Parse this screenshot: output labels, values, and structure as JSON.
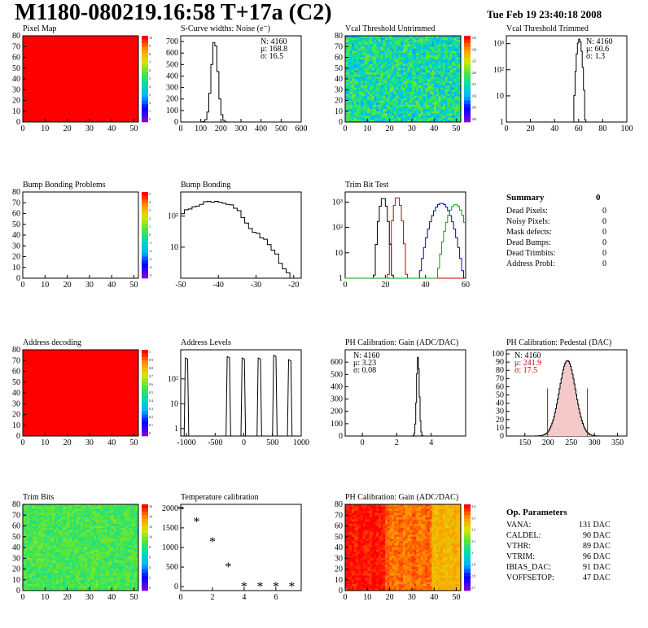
{
  "header": {
    "title": "M1180-080219.16:58 T+17a (C2)",
    "date": "Tue Feb 19 23:40:18 2008"
  },
  "chart_data": [
    {
      "id": "pixel-map",
      "type": "heatmap",
      "title": "Pixel Map",
      "xlim": [
        0,
        52
      ],
      "ylim": [
        0,
        80
      ],
      "xticks": [
        0,
        10,
        20,
        30,
        40,
        50
      ],
      "yticks": [
        0,
        10,
        20,
        30,
        40,
        50,
        60,
        70,
        80
      ],
      "fill": "#ff0000",
      "palette_ticks": [
        "10",
        "9",
        "8",
        "7",
        "6",
        "5",
        "4",
        "3",
        "2",
        "1",
        "0"
      ]
    },
    {
      "id": "noise",
      "type": "bar",
      "title": "S-Curve widths: Noise (e⁻)",
      "xlim": [
        0,
        600
      ],
      "ylim": [
        0,
        750
      ],
      "xticks": [
        0,
        100,
        200,
        300,
        400,
        500,
        600
      ],
      "yticks": [
        0,
        100,
        200,
        300,
        400,
        500,
        600,
        700
      ],
      "stats": [
        "N: 4160",
        "μ: 168.8",
        "σ: 16.5"
      ],
      "gauss": {
        "mean": 168.8,
        "sigma": 16.5,
        "peak": 710,
        "bins": 60
      }
    },
    {
      "id": "vcal-untrimmed",
      "type": "heatmap",
      "title": "Vcal Threshold Untrimmed",
      "xlim": [
        0,
        52
      ],
      "ylim": [
        0,
        80
      ],
      "xticks": [
        0,
        10,
        20,
        30,
        40,
        50
      ],
      "yticks": [
        0,
        10,
        20,
        30,
        40,
        50,
        60,
        70,
        80
      ],
      "palette_ticks": [
        "135",
        "130",
        "125",
        "120",
        "115",
        "110",
        "105",
        "100"
      ],
      "scheme": "noise",
      "colmean": 0.45,
      "spread": 0.18
    },
    {
      "id": "vcal-trimmed",
      "type": "bar",
      "title": "Vcal Threshold Trimmed",
      "xlim": [
        0,
        100
      ],
      "log": true,
      "ymin": 1,
      "ymax": 2000,
      "xticks": [
        0,
        20,
        40,
        60,
        80,
        100
      ],
      "yticks": [
        "1",
        "10",
        "10²",
        "10³"
      ],
      "stats": [
        "N: 4160",
        "μ: 60.6",
        "σ:  1.3"
      ],
      "gauss": {
        "mean": 60.6,
        "sigma": 1.3,
        "peak": 1500,
        "bins": 100
      }
    },
    {
      "id": "bump-problems",
      "type": "heatmap",
      "title": "Bump Bonding Problems",
      "xlim": [
        0,
        52
      ],
      "ylim": [
        0,
        80
      ],
      "xticks": [
        0,
        10,
        20,
        30,
        40,
        50
      ],
      "yticks": [
        0,
        10,
        20,
        30,
        40,
        50,
        60,
        70,
        80
      ],
      "fill": "#ffffff",
      "palette_ticks": [
        "5",
        "4",
        "3",
        "2",
        "1",
        "0",
        "-1",
        "-2",
        "-3",
        "-4",
        "-5"
      ]
    },
    {
      "id": "bump-bonding",
      "type": "line",
      "title": "Bump Bonding",
      "xlim": [
        -50,
        -18
      ],
      "log": true,
      "ymin": 1,
      "ymax": 600,
      "xticks": [
        -50,
        -40,
        -30,
        -20
      ],
      "yticks": [
        "10",
        "10²"
      ],
      "x": [
        -50,
        -49,
        -48,
        -47,
        -46,
        -45,
        -44,
        -43,
        -42,
        -41,
        -40,
        -39,
        -38,
        -37,
        -36,
        -35,
        -34,
        -33,
        -32,
        -31,
        -30,
        -29,
        -28,
        -27,
        -26,
        -25,
        -24,
        -23,
        -22,
        -21,
        -20
      ],
      "values": [
        120,
        160,
        170,
        200,
        210,
        240,
        290,
        300,
        280,
        300,
        280,
        260,
        240,
        230,
        180,
        150,
        90,
        60,
        40,
        30,
        28,
        20,
        18,
        12,
        8,
        6,
        3,
        2,
        1.5,
        1,
        1
      ]
    },
    {
      "id": "trim-bit-test",
      "type": "line",
      "title": "Trim Bit Test",
      "xlim": [
        0,
        60
      ],
      "log": true,
      "ymin": 1,
      "ymax": 2500,
      "xticks": [
        0,
        20,
        40,
        60
      ],
      "yticks": [
        "1",
        "10",
        "10²",
        "10³"
      ],
      "series": [
        {
          "name": "bit1",
          "color": "#000000",
          "mean": 19,
          "sigma": 1.2,
          "peak": 1500
        },
        {
          "name": "bit2",
          "color": "#cc0000",
          "mean": 26,
          "sigma": 1.2,
          "peak": 1600
        },
        {
          "name": "bit3",
          "color": "#0000cc",
          "mean": 48,
          "sigma": 3.0,
          "peak": 900
        },
        {
          "name": "bit4",
          "color": "#00aa00",
          "mean": 55,
          "sigma": 2.5,
          "peak": 800
        }
      ]
    },
    {
      "id": "address-decoding",
      "type": "heatmap",
      "title": "Address decoding",
      "xlim": [
        0,
        52
      ],
      "ylim": [
        0,
        80
      ],
      "xticks": [
        0,
        10,
        20,
        30,
        40,
        50
      ],
      "yticks": [
        0,
        10,
        20,
        30,
        40,
        50,
        60,
        70,
        80
      ],
      "fill": "#ff0000",
      "palette_ticks": [
        "1",
        "0.9",
        "0.8",
        "0.7",
        "0.6",
        "0.5",
        "0.4",
        "0.3",
        "0.2",
        "0.1",
        "0"
      ]
    },
    {
      "id": "address-levels",
      "type": "line",
      "title": "Address Levels",
      "xlim": [
        -1100,
        1000
      ],
      "log": true,
      "ymin": 0.5,
      "ymax": 1500,
      "xticks": [
        -1000,
        -500,
        0,
        500,
        1000
      ],
      "yticks": [
        "1",
        "10",
        "10²"
      ],
      "peaks": [
        -1000,
        -270,
        -10,
        270,
        540,
        800
      ],
      "heights": [
        700,
        800,
        700,
        700,
        900,
        600
      ]
    },
    {
      "id": "ph-gain",
      "type": "bar",
      "title": "PH Calibration: Gain (ADC/DAC)",
      "xlim": [
        -1,
        6
      ],
      "ylim": [
        0,
        700
      ],
      "xticks": [
        0,
        2,
        4
      ],
      "yticks": [
        0,
        100,
        200,
        300,
        400,
        500,
        600
      ],
      "stats": [
        "N: 4160",
        "μ: 3.23",
        "σ: 0.08"
      ],
      "gauss": {
        "mean": 3.23,
        "sigma": 0.08,
        "peak": 640,
        "bins": 140
      }
    },
    {
      "id": "ph-pedestal",
      "type": "bar",
      "title": "PH Calibration: Pedestal (DAC)",
      "xlim": [
        110,
        370
      ],
      "ylim": [
        0,
        105
      ],
      "xticks": [
        150,
        200,
        250,
        300,
        350
      ],
      "yticks": [
        0,
        10,
        20,
        30,
        40,
        50,
        60,
        70,
        80,
        90,
        100
      ],
      "stats": [
        "N: 4160",
        "μ: 241.9",
        "σ: 17.5"
      ],
      "gauss": {
        "mean": 241.9,
        "sigma": 17.5,
        "peak": 92,
        "bins": 130
      },
      "cuts": [
        199,
        285
      ]
    },
    {
      "id": "trim-bits",
      "type": "heatmap",
      "title": "Trim Bits",
      "xlim": [
        0,
        52
      ],
      "ylim": [
        0,
        80
      ],
      "xticks": [
        0,
        10,
        20,
        30,
        40,
        50
      ],
      "yticks": [
        0,
        10,
        20,
        30,
        40,
        50,
        60,
        70,
        80
      ],
      "palette_ticks": [
        "16",
        "14",
        "12",
        "10",
        "8",
        "6",
        "4",
        "2",
        "0"
      ],
      "scheme": "noise",
      "colmean": 0.55,
      "spread": 0.08
    },
    {
      "id": "temperature",
      "type": "scatter",
      "title": "Temperature calibration",
      "xlim": [
        0,
        7.6
      ],
      "ylim": [
        -100,
        2100
      ],
      "xticks": [
        0,
        2,
        4,
        6
      ],
      "yticks": [
        0,
        500,
        1000,
        1500,
        2000
      ],
      "x": [
        0,
        1,
        2,
        3,
        4,
        5,
        6,
        7
      ],
      "values": [
        1950,
        1650,
        1150,
        500,
        0,
        0,
        0,
        0
      ]
    },
    {
      "id": "ph-gain-map",
      "type": "heatmap",
      "title": "PH Calibration: Gain (ADC/DAC)",
      "xlim": [
        0,
        52
      ],
      "ylim": [
        0,
        80
      ],
      "xticks": [
        0,
        10,
        20,
        30,
        40,
        50
      ],
      "yticks": [
        0,
        10,
        20,
        30,
        40,
        50,
        60,
        70,
        80
      ],
      "palette_ticks": [
        "3.4",
        "3.3",
        "3.2",
        "3.1",
        "3",
        "2.9",
        "2.8",
        "2.7"
      ],
      "scheme": "warm",
      "colmean": 0.8,
      "spread": 0.1
    }
  ],
  "summary": {
    "title": "Summary",
    "total": "0",
    "rows": [
      {
        "label": "Dead Pixels:",
        "value": "0"
      },
      {
        "label": "Noisy Pixels:",
        "value": "0"
      },
      {
        "label": "Mask defects:",
        "value": "0"
      },
      {
        "label": "Dead Bumps:",
        "value": "0"
      },
      {
        "label": "Dead Trimbits:",
        "value": "0"
      },
      {
        "label": "Address Probl:",
        "value": "0"
      }
    ]
  },
  "op_params": {
    "title": "Op. Parameters",
    "rows": [
      {
        "label": "VANA:",
        "value": "131 DAC"
      },
      {
        "label": "CALDEL:",
        "value": "90 DAC"
      },
      {
        "label": "VTHR:",
        "value": "89 DAC"
      },
      {
        "label": "VTRIM:",
        "value": "96 DAC"
      },
      {
        "label": "IBIAS_DAC:",
        "value": "91 DAC"
      },
      {
        "label": "VOFFSETOP:",
        "value": "47 DAC"
      }
    ]
  }
}
